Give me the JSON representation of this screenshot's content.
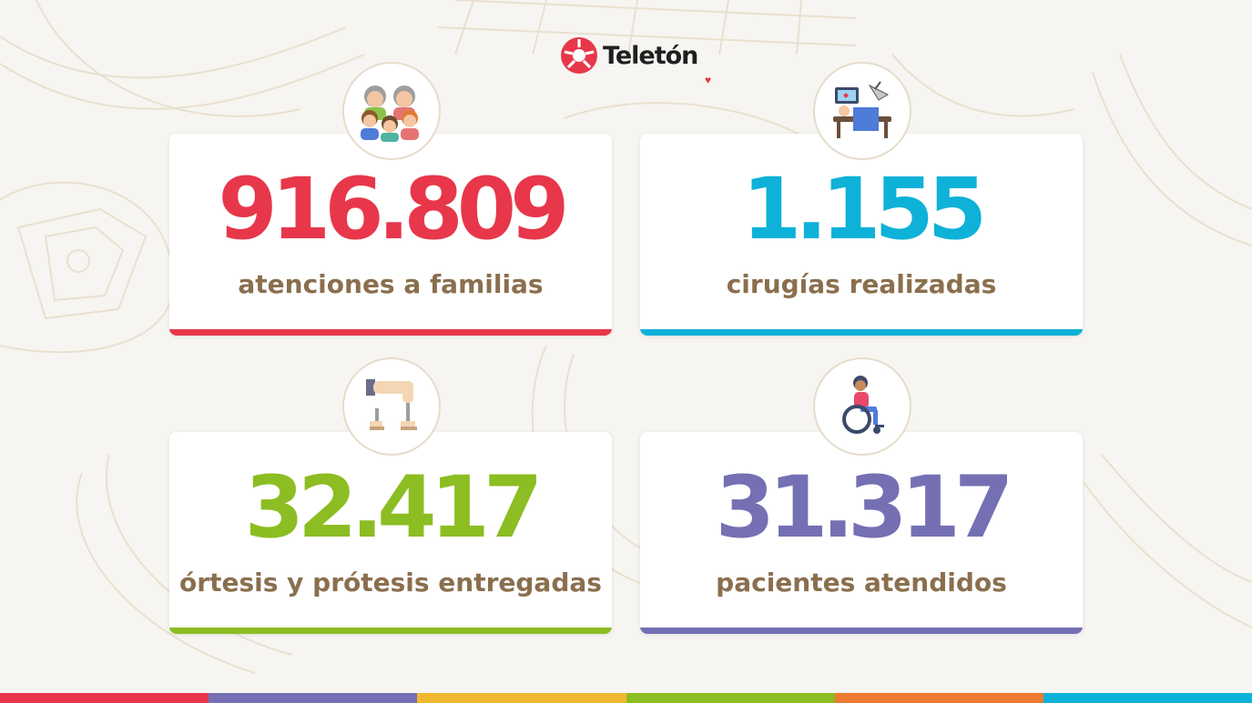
{
  "brand": {
    "name": "Teleton",
    "logo_text": "Teletón"
  },
  "stats": [
    {
      "value": "916.809",
      "label": "atenciones a familias",
      "color": "#e8374a",
      "icon": "family-icon"
    },
    {
      "value": "1.155",
      "label": "cirugías realizadas",
      "color": "#0eb1d8",
      "icon": "surgery-icon"
    },
    {
      "value": "32.417",
      "label": "órtesis y prótesis entregadas",
      "color": "#8cbd22",
      "icon": "prosthesis-icon"
    },
    {
      "value": "31.317",
      "label": "pacientes atendidos",
      "color": "#7470b3",
      "icon": "wheelchair-icon"
    }
  ],
  "colors": {
    "background": "#f7f5f1",
    "label_text": "#8a6f4e",
    "badge_border": "#e6dccb",
    "strip": [
      "#e8374a",
      "#7470b3",
      "#f2b731",
      "#8cbd22",
      "#ec7a2f",
      "#0eb1d8"
    ]
  }
}
